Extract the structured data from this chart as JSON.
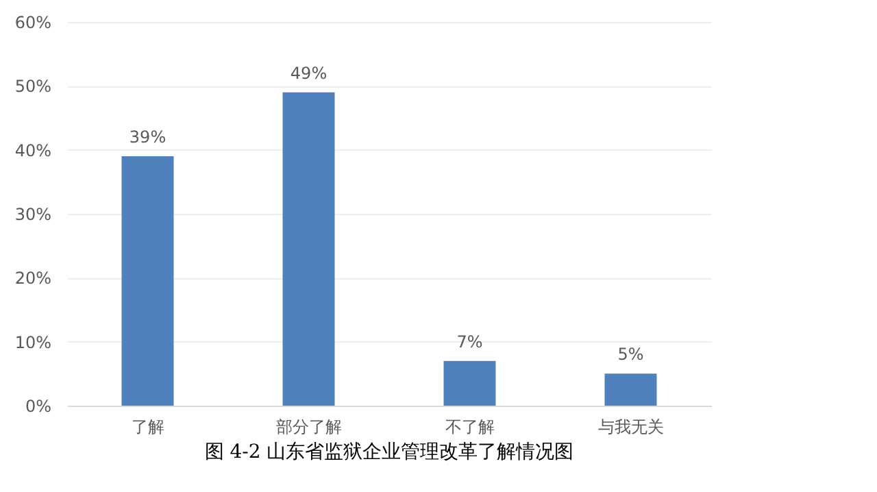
{
  "chart_data": {
    "type": "bar",
    "title": "图 4-2  山东省监狱企业管理改革了解情况图",
    "categories": [
      "了解",
      "部分了解",
      "不了解",
      "与我无关"
    ],
    "values": [
      39,
      49,
      7,
      5
    ],
    "color": "#4f81bd",
    "ylim": [
      0,
      60
    ],
    "yticks": [
      {
        "value": 0,
        "label": "0%"
      },
      {
        "value": 10,
        "label": "10%"
      },
      {
        "value": 20,
        "label": "20%"
      },
      {
        "value": 30,
        "label": "30%"
      },
      {
        "value": 40,
        "label": "40%"
      },
      {
        "value": 50,
        "label": "50%"
      },
      {
        "value": 60,
        "label": "60%"
      }
    ],
    "value_labels": [
      "39%",
      "49%",
      "7%",
      "5%"
    ],
    "grid": "y"
  }
}
